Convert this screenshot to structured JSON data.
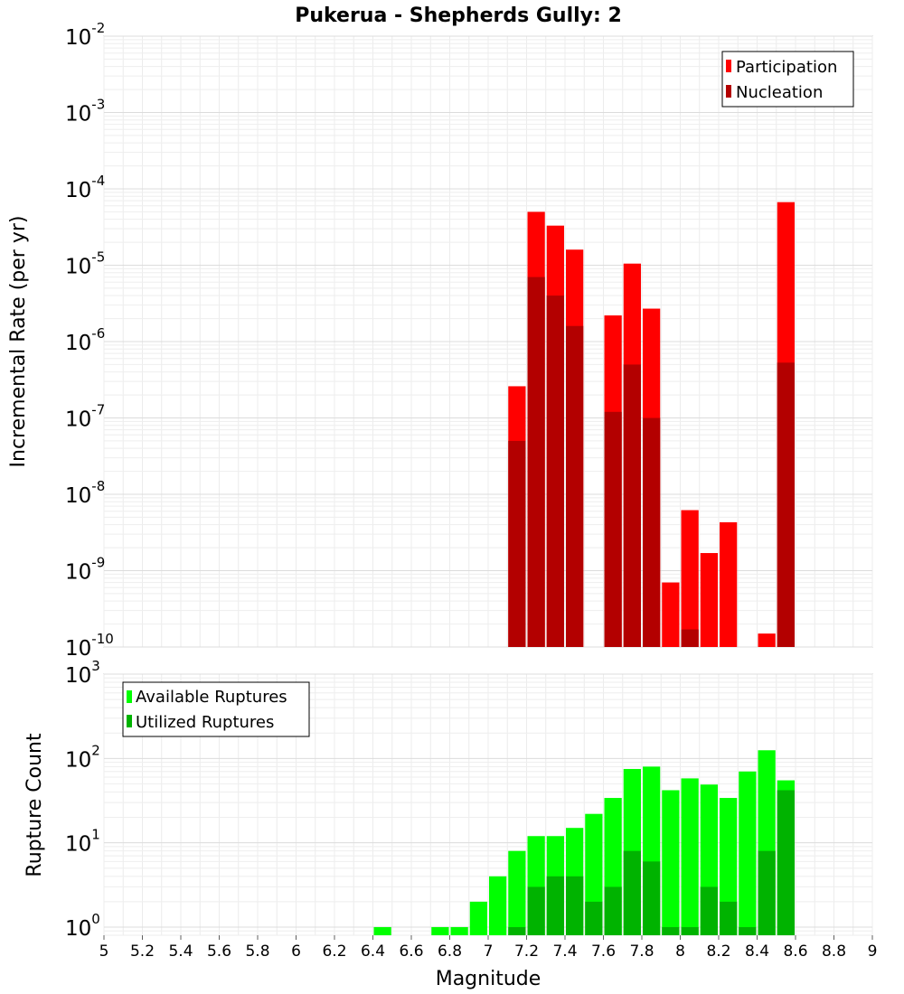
{
  "chart_data": [
    {
      "type": "bar",
      "title": "Pukerua - Shepherds Gully: 2",
      "xlabel": "Magnitude",
      "ylabel": "Incremental Rate (per yr)",
      "yscale": "log",
      "xlim": [
        5,
        9
      ],
      "ylim": [
        1e-10,
        0.01
      ],
      "grid": true,
      "legend_position": "top-right",
      "bin_width": 0.1,
      "series": [
        {
          "name": "Participation",
          "color": "#ff0000",
          "x": [
            7.15,
            7.25,
            7.35,
            7.45,
            7.65,
            7.75,
            7.85,
            7.95,
            8.05,
            8.15,
            8.25,
            8.45,
            8.55
          ],
          "values": [
            2.6e-07,
            5e-05,
            3.3e-05,
            1.6e-05,
            2.2e-06,
            1.05e-05,
            2.7e-06,
            7e-10,
            6.2e-09,
            1.7e-09,
            4.3e-09,
            1.5e-10,
            6.7e-05
          ]
        },
        {
          "name": "Nucleation",
          "color": "#b30000",
          "x": [
            7.15,
            7.25,
            7.35,
            7.45,
            7.65,
            7.75,
            7.85,
            8.05,
            8.55
          ],
          "values": [
            5e-08,
            7e-06,
            4e-06,
            1.6e-06,
            1.2e-07,
            5e-07,
            1e-07,
            1.7e-10,
            5.3e-07
          ]
        }
      ]
    },
    {
      "type": "bar",
      "title": "",
      "xlabel": "Magnitude",
      "ylabel": "Rupture Count",
      "yscale": "log",
      "xlim": [
        5,
        9
      ],
      "ylim": [
        0.8,
        1000
      ],
      "grid": true,
      "legend_position": "top-left",
      "bin_width": 0.1,
      "xticks": [
        "5",
        "5.2",
        "5.4",
        "5.6",
        "5.8",
        "6",
        "6.2",
        "6.4",
        "6.6",
        "6.8",
        "7",
        "7.2",
        "7.4",
        "7.6",
        "7.8",
        "8",
        "8.2",
        "8.4",
        "8.6",
        "8.8",
        "9"
      ],
      "series": [
        {
          "name": "Available Ruptures",
          "color": "#00ff00",
          "x": [
            6.45,
            6.75,
            6.85,
            6.95,
            7.05,
            7.15,
            7.25,
            7.35,
            7.45,
            7.55,
            7.65,
            7.75,
            7.85,
            7.95,
            8.05,
            8.15,
            8.25,
            8.35,
            8.45,
            8.55
          ],
          "values": [
            1,
            1,
            1,
            2,
            4,
            8,
            12,
            12,
            15,
            22,
            34,
            75,
            80,
            42,
            58,
            49,
            34,
            70,
            125,
            55
          ]
        },
        {
          "name": "Utilized Ruptures",
          "color": "#00b300",
          "x": [
            7.15,
            7.25,
            7.35,
            7.45,
            7.55,
            7.65,
            7.75,
            7.85,
            7.95,
            8.05,
            8.15,
            8.25,
            8.35,
            8.45,
            8.55
          ],
          "values": [
            1,
            3,
            4,
            4,
            2,
            3,
            8,
            6,
            1,
            1,
            3,
            2,
            1,
            8,
            42
          ]
        }
      ]
    }
  ]
}
